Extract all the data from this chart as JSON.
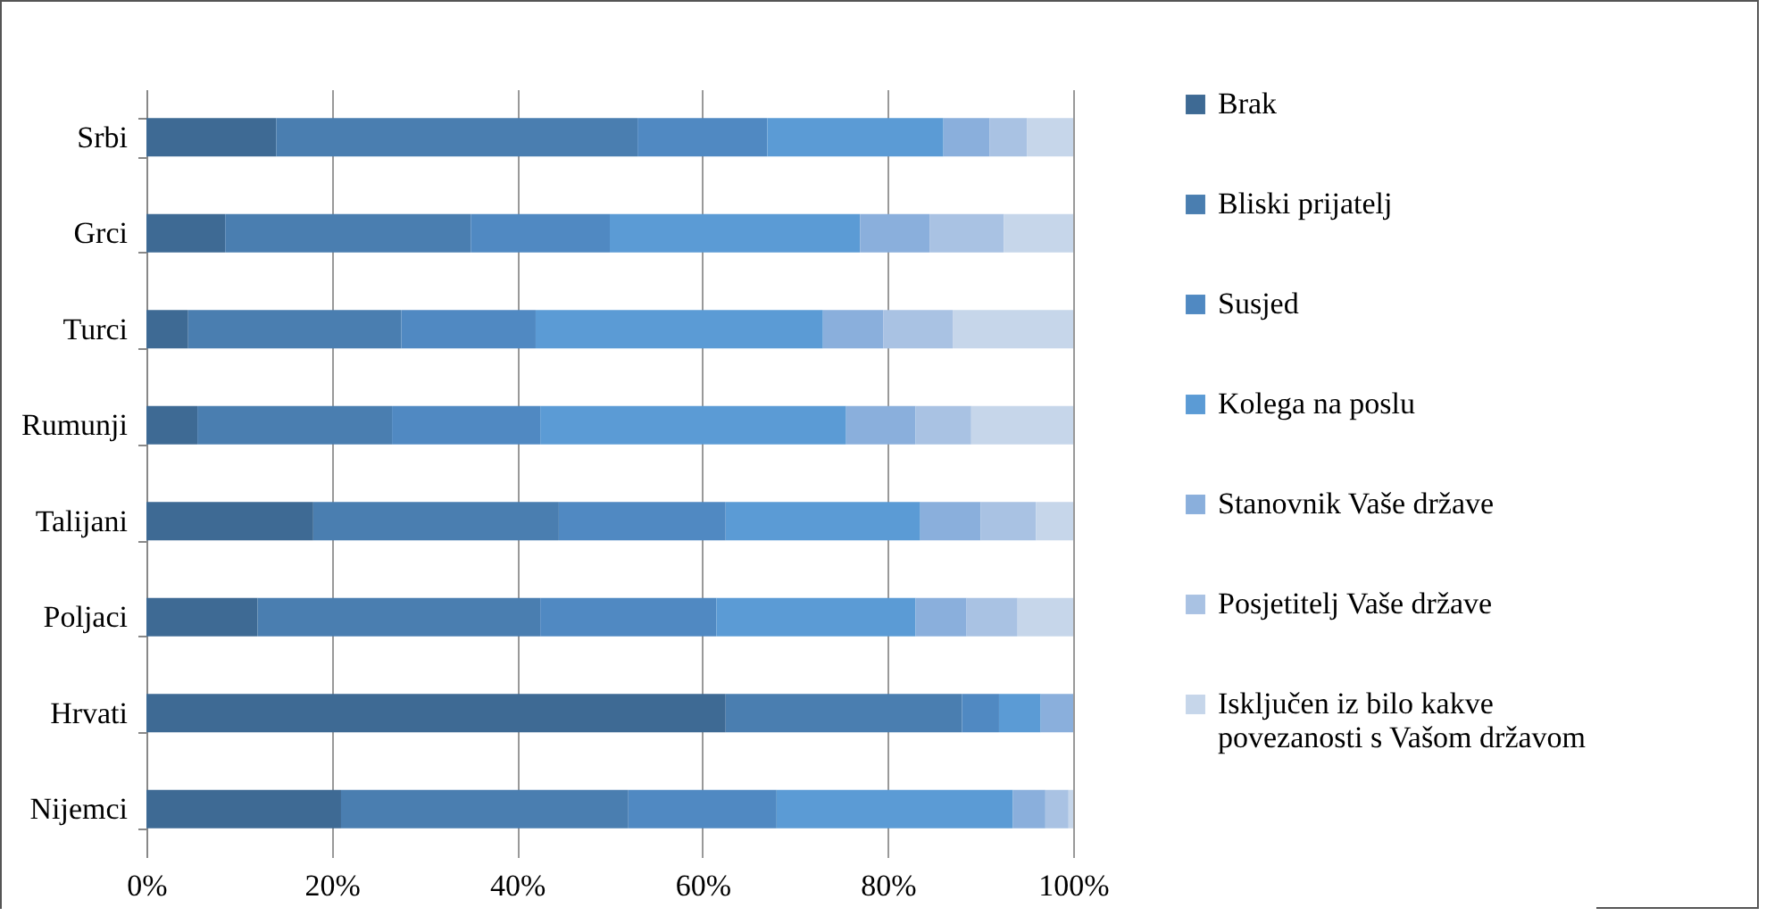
{
  "chart_data": {
    "type": "bar",
    "orientation": "horizontal",
    "stacked": true,
    "categories": [
      "Srbi",
      "Grci",
      "Turci",
      "Rumunji",
      "Talijani",
      "Poljaci",
      "Hrvati",
      "Nijemci"
    ],
    "series": [
      {
        "name": "Brak",
        "color": "#3e6a94",
        "values": [
          14,
          8.5,
          4.5,
          5.5,
          18,
          12,
          62.5,
          21
        ]
      },
      {
        "name": "Bliski prijatelj",
        "color": "#4a7eb0",
        "values": [
          39,
          26.5,
          23,
          21,
          26.5,
          30.5,
          25.5,
          31
        ]
      },
      {
        "name": "Susjed",
        "color": "#5089c2",
        "values": [
          14,
          15,
          14.5,
          16,
          18,
          19,
          4,
          16
        ]
      },
      {
        "name": "Kolega na poslu",
        "color": "#5b9bd5",
        "values": [
          19,
          27,
          31,
          33,
          21,
          21.5,
          4.5,
          25.5
        ]
      },
      {
        "name": "Stanovnik Vaše države",
        "color": "#8aafdc",
        "values": [
          5,
          7.5,
          6.5,
          7.5,
          6.5,
          5.5,
          3.5,
          3.5
        ]
      },
      {
        "name": "Posjetitelj Vaše države",
        "color": "#a9c2e3",
        "values": [
          4,
          8,
          7.5,
          6,
          6,
          5.5,
          0,
          2.5
        ]
      },
      {
        "name": "Isključen iz bilo kakve povezanosti s Vašom državom",
        "color": "#c6d6ea",
        "values": [
          5,
          7.5,
          13,
          11,
          4,
          6,
          0,
          0.5
        ]
      }
    ],
    "xlim": [
      0,
      100
    ],
    "xticks": [
      {
        "value": 0,
        "label": "0%"
      },
      {
        "value": 20,
        "label": "20%"
      },
      {
        "value": 40,
        "label": "40%"
      },
      {
        "value": 60,
        "label": "60%"
      },
      {
        "value": 80,
        "label": "80%"
      },
      {
        "value": 100,
        "label": "100%"
      }
    ],
    "grid": "x",
    "legend": "right"
  }
}
